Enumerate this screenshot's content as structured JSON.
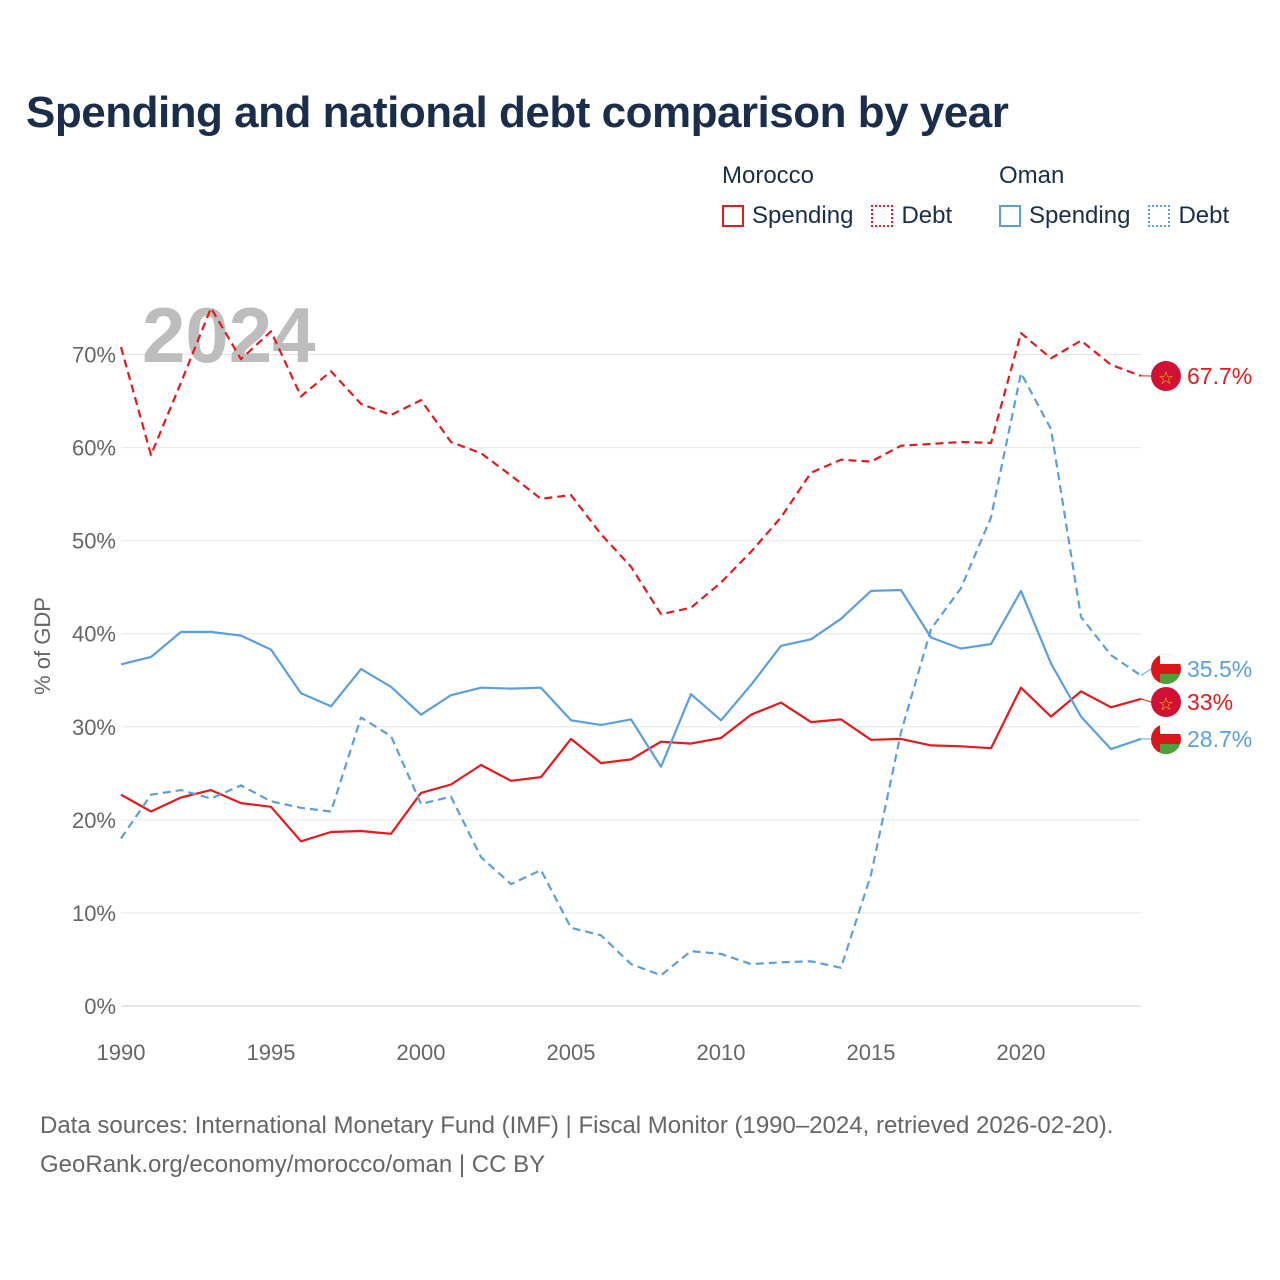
{
  "title": "Spending and national debt comparison by year",
  "legend": {
    "groups": [
      {
        "country": "Morocco",
        "color": "#e41a1c",
        "items": [
          "Spending",
          "Debt"
        ]
      },
      {
        "country": "Oman",
        "color": "#5aa0e0",
        "items": [
          "Spending",
          "Debt"
        ]
      }
    ]
  },
  "footer": {
    "line1": "Data sources: International Monetary Fund (IMF) | Fiscal Monitor (1990–2024, retrieved 2026-02-20).",
    "line2": "GeoRank.org/economy/morocco/oman | CC BY"
  },
  "chart_data": {
    "type": "line",
    "ylabel": "% of GDP",
    "ylim": [
      0,
      75
    ],
    "yticks": [
      0,
      10,
      20,
      30,
      40,
      50,
      60,
      70
    ],
    "ytick_labels": [
      "0%",
      "10%",
      "20%",
      "30%",
      "40%",
      "50%",
      "60%",
      "70%"
    ],
    "xlim": [
      1990,
      2024
    ],
    "xticks": [
      1990,
      1995,
      2000,
      2005,
      2010,
      2015,
      2020
    ],
    "year_watermark": "2024",
    "x": [
      1990,
      1991,
      1992,
      1993,
      1994,
      1995,
      1996,
      1997,
      1998,
      1999,
      2000,
      2001,
      2002,
      2003,
      2004,
      2005,
      2006,
      2007,
      2008,
      2009,
      2010,
      2011,
      2012,
      2013,
      2014,
      2015,
      2016,
      2017,
      2018,
      2019,
      2020,
      2021,
      2022,
      2023,
      2024
    ],
    "series": [
      {
        "name": "Morocco Debt",
        "country": "Morocco",
        "kind": "Debt",
        "color": "#e41a1c",
        "dash": true,
        "values": [
          70.8,
          59.2,
          67.0,
          75.0,
          69.5,
          72.5,
          65.5,
          68.2,
          64.7,
          63.5,
          65.1,
          60.6,
          59.4,
          57.0,
          54.5,
          54.9,
          50.7,
          47.2,
          42.1,
          42.8,
          45.5,
          48.8,
          52.5,
          57.3,
          58.7,
          58.5,
          60.2,
          60.4,
          60.6,
          60.5,
          72.3,
          69.6,
          71.5,
          68.9,
          67.7
        ],
        "end_label": "67.7%"
      },
      {
        "name": "Morocco Spending",
        "country": "Morocco",
        "kind": "Spending",
        "color": "#e41a1c",
        "dash": false,
        "values": [
          22.7,
          20.9,
          22.4,
          23.2,
          21.8,
          21.4,
          17.7,
          18.7,
          18.8,
          18.5,
          22.9,
          23.8,
          25.9,
          24.2,
          24.6,
          28.7,
          26.1,
          26.5,
          28.4,
          28.2,
          28.8,
          31.3,
          32.6,
          30.5,
          30.8,
          28.6,
          28.7,
          28.0,
          27.9,
          27.7,
          34.2,
          31.1,
          33.8,
          32.1,
          33.0
        ],
        "end_label": "33%"
      },
      {
        "name": "Oman Spending",
        "country": "Oman",
        "kind": "Spending",
        "color": "#5aa0e0",
        "dash": false,
        "values": [
          36.7,
          37.5,
          40.2,
          40.2,
          39.8,
          38.3,
          33.6,
          32.2,
          36.2,
          34.3,
          31.3,
          33.4,
          34.2,
          34.1,
          34.2,
          30.7,
          30.2,
          30.8,
          25.7,
          33.5,
          30.7,
          34.5,
          38.7,
          39.4,
          41.6,
          44.6,
          44.7,
          39.6,
          38.4,
          38.9,
          44.6,
          36.8,
          31.1,
          27.6,
          28.7
        ],
        "end_label": "28.7%"
      },
      {
        "name": "Oman Debt",
        "country": "Oman",
        "kind": "Debt",
        "color": "#5aa0e0",
        "dash": true,
        "values": [
          18.0,
          22.7,
          23.2,
          22.3,
          23.7,
          22.0,
          21.3,
          20.9,
          31.0,
          29.0,
          21.7,
          22.5,
          16.0,
          13.1,
          14.6,
          8.4,
          7.6,
          4.5,
          3.3,
          5.9,
          5.6,
          4.5,
          4.7,
          4.8,
          4.1,
          14.1,
          29.4,
          40.5,
          44.9,
          52.5,
          68.0,
          62.0,
          41.8,
          37.7,
          35.5
        ],
        "end_label": "35.5%"
      }
    ]
  }
}
